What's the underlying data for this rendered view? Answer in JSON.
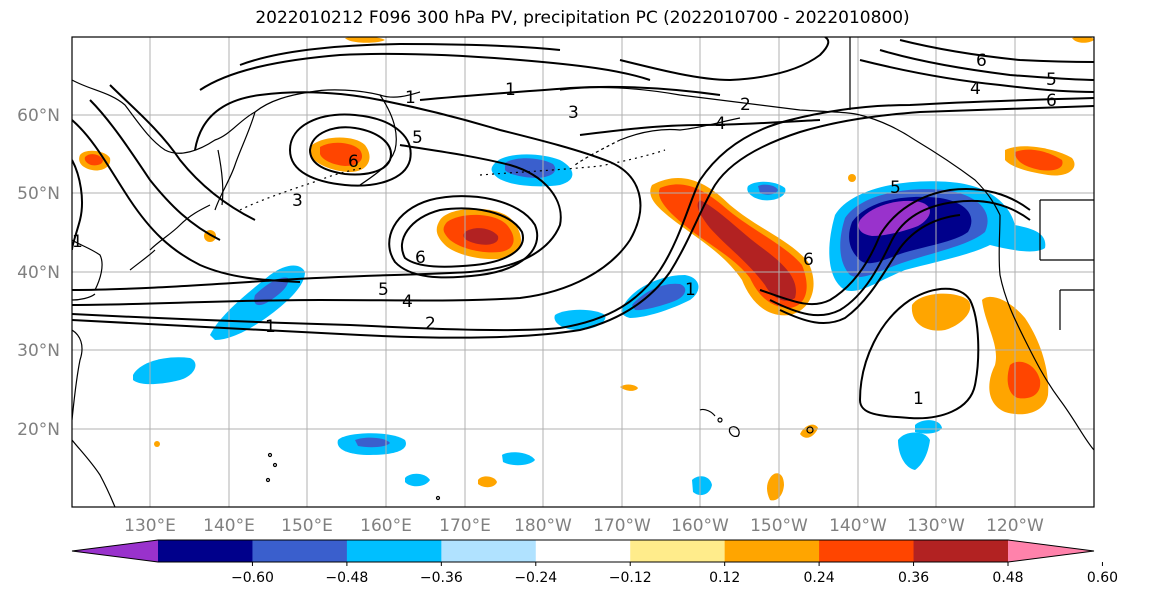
{
  "title": "2022010212 F096 300 hPa PV, precipitation PC (2022010700 - 2022010800)",
  "map": {
    "lon_range": [
      120,
      250
    ],
    "lat_range": [
      10,
      70
    ],
    "lat_labels": [
      "20°N",
      "30°N",
      "40°N",
      "50°N",
      "60°N"
    ],
    "lat_values": [
      20,
      30,
      40,
      50,
      60
    ],
    "lon_labels": [
      "130°E",
      "140°E",
      "150°E",
      "160°E",
      "170°E",
      "180°W",
      "170°W",
      "160°W",
      "150°W",
      "140°W",
      "130°W",
      "120°W"
    ],
    "lon_values": [
      130,
      140,
      150,
      160,
      170,
      180,
      190,
      200,
      210,
      220,
      230,
      240
    ],
    "contour_labels": [
      "1",
      "1",
      "1",
      "1",
      "1",
      "1",
      "2",
      "2",
      "3",
      "3",
      "4",
      "4",
      "4",
      "5",
      "5",
      "5",
      "5",
      "6",
      "6",
      "6",
      "6",
      "6"
    ]
  },
  "colorbar": {
    "ticks": [
      "−0.60",
      "−0.48",
      "−0.36",
      "−0.24",
      "−0.12",
      "0.12",
      "0.24",
      "0.36",
      "0.48",
      "0.60"
    ],
    "colors": [
      "#9932cc",
      "#00008b",
      "#3a5fcd",
      "#00bfff",
      "#b0e2ff",
      "#ffffff",
      "#ffec8b",
      "#ffa500",
      "#ff4500",
      "#b22222",
      "#ff82ab"
    ]
  }
}
